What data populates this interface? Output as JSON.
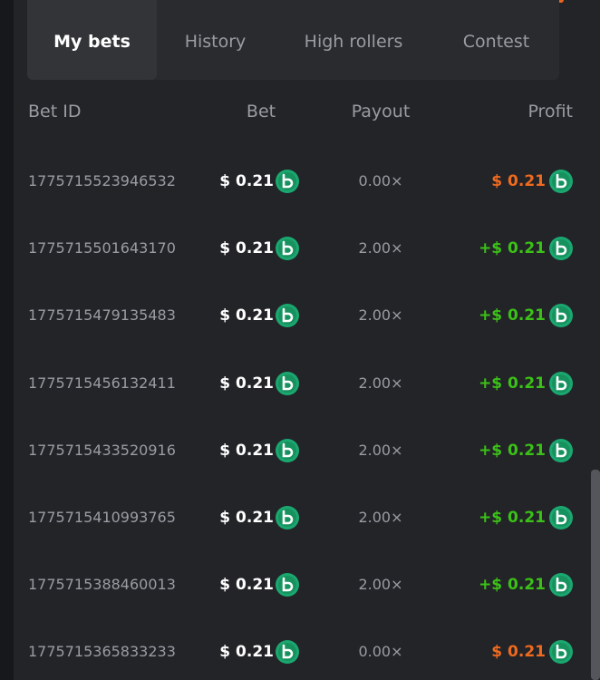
{
  "tabs": [
    "My bets",
    "History",
    "High rollers",
    "Contest"
  ],
  "active_tab": 0,
  "table": {
    "columns": [
      "Bet ID",
      "Bet",
      "Payout",
      "Profit"
    ],
    "rows": [
      [
        "1775715523946532",
        "$ 0.21",
        "0.00×",
        "$ 0.21"
      ],
      [
        "1775715501643170",
        "$ 0.21",
        "2.00×",
        "+$ 0.21"
      ],
      [
        "1775715479135483",
        "$ 0.21",
        "2.00×",
        "+$ 0.21"
      ],
      [
        "1775715456132411",
        "$ 0.21",
        "2.00×",
        "+$ 0.21"
      ],
      [
        "1775715433520916",
        "$ 0.21",
        "2.00×",
        "+$ 0.21"
      ],
      [
        "1775715410993765",
        "$ 0.21",
        "2.00×",
        "+$ 0.21"
      ],
      [
        "1775715388460013",
        "$ 0.21",
        "2.00×",
        "+$ 0.21"
      ],
      [
        "1775715365833233",
        "$ 0.21",
        "0.00×",
        "$ 0.21"
      ]
    ]
  }
}
